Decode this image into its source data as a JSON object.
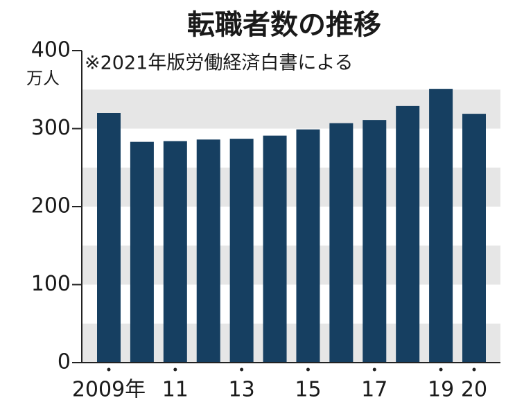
{
  "chart_data": {
    "type": "bar",
    "title": "転職者数の推移",
    "subtitle": "※2021年版労働経済白書による",
    "y_label": "万人",
    "categories": [
      "2009年",
      null,
      "11",
      null,
      "13",
      null,
      "15",
      null,
      "17",
      null,
      "19",
      "20"
    ],
    "values": [
      320,
      283,
      284,
      286,
      287,
      291,
      299,
      307,
      311,
      329,
      351,
      319
    ],
    "color": "#163f61",
    "ylim": [
      0,
      400
    ],
    "yticks": [
      0,
      100,
      200,
      300,
      400
    ],
    "grid": true
  }
}
